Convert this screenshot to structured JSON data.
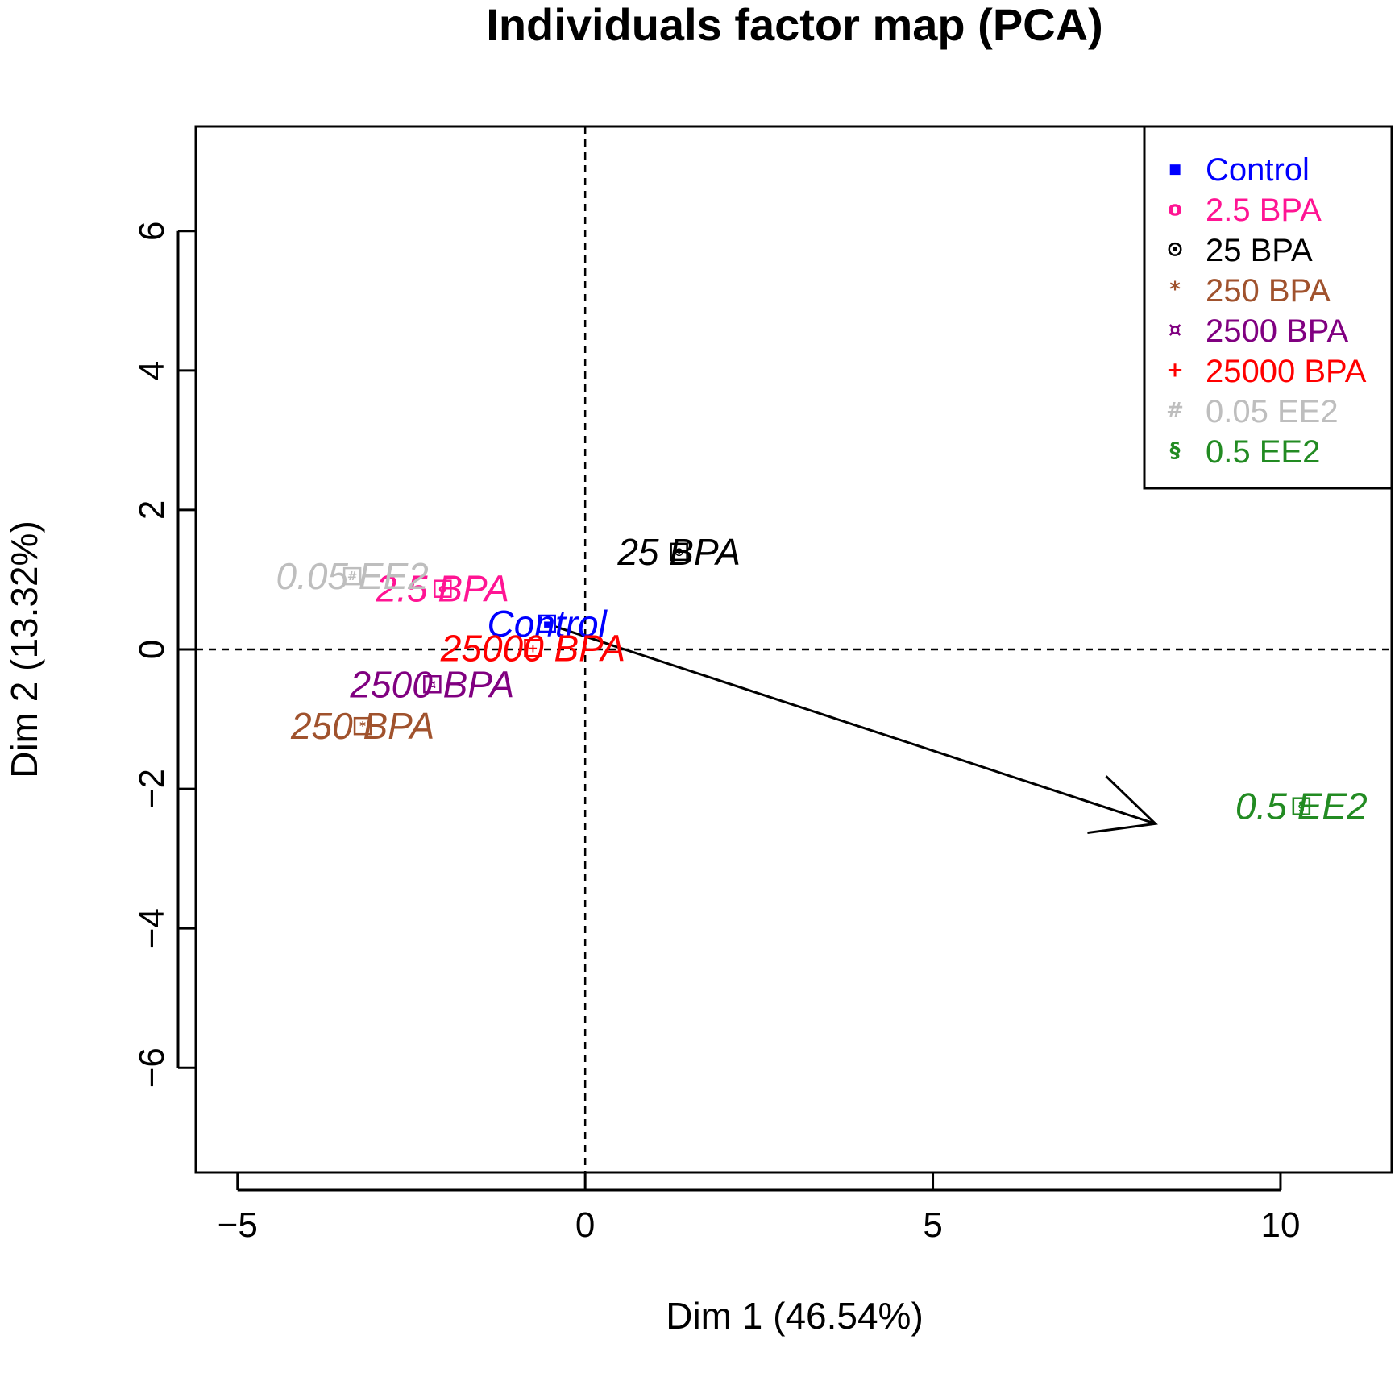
{
  "chart_data": {
    "type": "scatter",
    "title": "Individuals factor map (PCA)",
    "xlabel": "Dim 1 (46.54%)",
    "ylabel": "Dim 2 (13.32%)",
    "xlim": [
      -5.6,
      11.6
    ],
    "ylim": [
      -7.5,
      7.5
    ],
    "x_ticks": [
      -5,
      0,
      5,
      10
    ],
    "y_ticks": [
      -6,
      -4,
      -2,
      0,
      2,
      4,
      6
    ],
    "x_tick_labels": [
      "−5",
      "0",
      "5",
      "10"
    ],
    "y_tick_labels": [
      "−6",
      "−4",
      "−2",
      "0",
      "2",
      "4",
      "6"
    ],
    "grid": false,
    "reference_lines": {
      "x": 0,
      "y": 0,
      "style": "dashed"
    },
    "legend_position": "top-right",
    "points": [
      {
        "label": "Control",
        "x": -0.55,
        "y": 0.37,
        "color": "#0000FF",
        "symbol": "▪"
      },
      {
        "label": "2.5 BPA",
        "x": -2.05,
        "y": 0.87,
        "color": "#FF1493",
        "symbol": "o"
      },
      {
        "label": "25 BPA",
        "x": 1.35,
        "y": 1.4,
        "color": "#000000",
        "symbol": "⊙"
      },
      {
        "label": "250 BPA",
        "x": -3.2,
        "y": -1.1,
        "color": "#A0522D",
        "symbol": "*"
      },
      {
        "label": "2500 BPA",
        "x": -2.2,
        "y": -0.5,
        "color": "#800080",
        "symbol": "¤"
      },
      {
        "label": "25000 BPA",
        "x": -0.75,
        "y": 0.02,
        "color": "#FF0000",
        "symbol": "+"
      },
      {
        "label": "0.05 EE2",
        "x": -3.35,
        "y": 1.05,
        "color": "#BEBEBE",
        "symbol": "#"
      },
      {
        "label": "0.5 EE2",
        "x": 10.3,
        "y": -2.25,
        "color": "#228B22",
        "symbol": "§"
      }
    ],
    "arrow": {
      "from": [
        -0.5,
        0.35
      ],
      "to": [
        8.2,
        -2.5
      ],
      "color": "#000000"
    }
  }
}
